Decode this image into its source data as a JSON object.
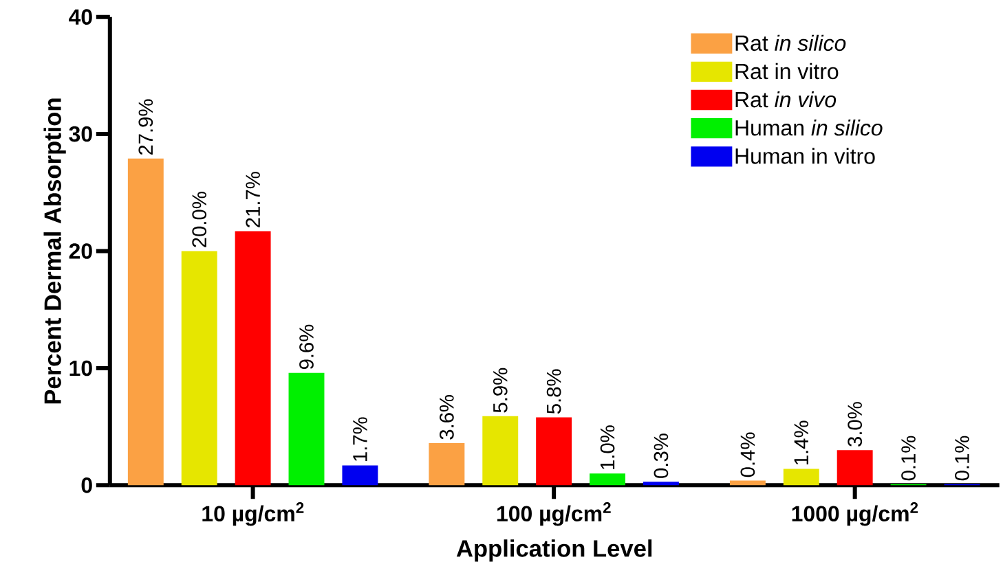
{
  "chart_data": {
    "type": "bar",
    "xlabel": "Application Level",
    "ylabel": "Percent Dermal Absorption",
    "categories": [
      "10 µg/cm$^{2}$",
      "100 µg/cm$^{2}$",
      "1000 µg/cm$^{2}$"
    ],
    "series": [
      {
        "name": "Rat *in silico*",
        "color": "#fba144",
        "values": [
          27.9,
          3.6,
          0.4
        ],
        "value_labels": [
          "27.9%",
          "3.6%",
          "0.4%"
        ]
      },
      {
        "name": "Rat in vitro",
        "color": "#e6e600",
        "values": [
          20.0,
          5.9,
          1.4
        ],
        "value_labels": [
          "20.0%",
          "5.9%",
          "1.4%"
        ]
      },
      {
        "name": "Rat *in vivo*",
        "color": "#ff0000",
        "values": [
          21.7,
          5.8,
          3.0
        ],
        "value_labels": [
          "21.7%",
          "5.8%",
          "3.0%"
        ]
      },
      {
        "name": "Human *in silico*",
        "color": "#00f000",
        "values": [
          9.6,
          1.0,
          0.1
        ],
        "value_labels": [
          "9.6%",
          "1.0%",
          "0.1%"
        ]
      },
      {
        "name": "Human in vitro",
        "color": "#0000f0",
        "values": [
          1.7,
          0.3,
          0.1
        ],
        "value_labels": [
          "1.7%",
          "0.3%",
          "0.1%"
        ]
      }
    ],
    "ylim": [
      0,
      40
    ],
    "yticks": [
      0,
      10,
      20,
      30,
      40
    ],
    "legend": "top right"
  }
}
